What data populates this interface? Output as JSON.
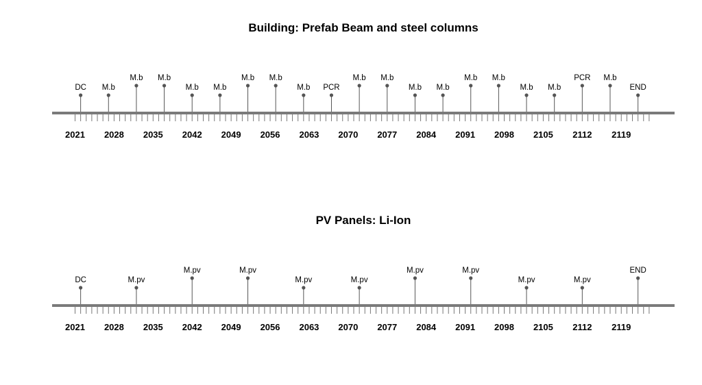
{
  "charts": [
    {
      "title": "Building: Prefab Beam and steel columns",
      "type": "timeline",
      "year_ticks": [
        "2021",
        "2028",
        "2035",
        "2042",
        "2049",
        "2056",
        "2063",
        "2070",
        "2077",
        "2084",
        "2091",
        "2098",
        "2105",
        "2112",
        "2119"
      ],
      "events": [
        {
          "year": 2022,
          "label": "DC"
        },
        {
          "year": 2027,
          "label": "M.b"
        },
        {
          "year": 2032,
          "label": "M.b"
        },
        {
          "year": 2037,
          "label": "M.b"
        },
        {
          "year": 2042,
          "label": "M.b"
        },
        {
          "year": 2047,
          "label": "M.b"
        },
        {
          "year": 2052,
          "label": "M.b"
        },
        {
          "year": 2057,
          "label": "M.b"
        },
        {
          "year": 2062,
          "label": "M.b"
        },
        {
          "year": 2067,
          "label": "PCR"
        },
        {
          "year": 2072,
          "label": "M.b"
        },
        {
          "year": 2077,
          "label": "M.b"
        },
        {
          "year": 2082,
          "label": "M.b"
        },
        {
          "year": 2087,
          "label": "M.b"
        },
        {
          "year": 2092,
          "label": "M.b"
        },
        {
          "year": 2097,
          "label": "M.b"
        },
        {
          "year": 2102,
          "label": "M.b"
        },
        {
          "year": 2107,
          "label": "M.b"
        },
        {
          "year": 2112,
          "label": "PCR"
        },
        {
          "year": 2117,
          "label": "M.b"
        },
        {
          "year": 2122,
          "label": "END"
        }
      ]
    },
    {
      "title": "PV Panels: Li-Ion",
      "type": "timeline",
      "year_ticks": [
        "2021",
        "2028",
        "2035",
        "2042",
        "2049",
        "2056",
        "2063",
        "2070",
        "2077",
        "2084",
        "2091",
        "2098",
        "2105",
        "2112",
        "2119"
      ],
      "events": [
        {
          "year": 2022,
          "label": "DC"
        },
        {
          "year": 2032,
          "label": "M.pv"
        },
        {
          "year": 2042,
          "label": "M.pv"
        },
        {
          "year": 2052,
          "label": "M.pv"
        },
        {
          "year": 2062,
          "label": "M.pv"
        },
        {
          "year": 2072,
          "label": "M.pv"
        },
        {
          "year": 2082,
          "label": "M.pv"
        },
        {
          "year": 2092,
          "label": "M.pv"
        },
        {
          "year": 2102,
          "label": "M.pv"
        },
        {
          "year": 2112,
          "label": "M.pv"
        },
        {
          "year": 2122,
          "label": "END"
        }
      ]
    }
  ],
  "chart_data": [
    {
      "type": "timeline",
      "title": "Building: Prefab Beam and steel columns",
      "x": [
        2022,
        2027,
        2032,
        2037,
        2042,
        2047,
        2052,
        2057,
        2062,
        2067,
        2072,
        2077,
        2082,
        2087,
        2092,
        2097,
        2102,
        2107,
        2112,
        2117,
        2122
      ],
      "labels": [
        "DC",
        "M.b",
        "M.b",
        "M.b",
        "M.b",
        "M.b",
        "M.b",
        "M.b",
        "M.b",
        "PCR",
        "M.b",
        "M.b",
        "M.b",
        "M.b",
        "M.b",
        "M.b",
        "M.b",
        "M.b",
        "PCR",
        "M.b",
        "END"
      ],
      "xlim": [
        2021,
        2123
      ]
    },
    {
      "type": "timeline",
      "title": "PV Panels: Li-Ion",
      "x": [
        2022,
        2032,
        2042,
        2052,
        2062,
        2072,
        2082,
        2092,
        2102,
        2112,
        2122
      ],
      "labels": [
        "DC",
        "M.pv",
        "M.pv",
        "M.pv",
        "M.pv",
        "M.pv",
        "M.pv",
        "M.pv",
        "M.pv",
        "M.pv",
        "END"
      ],
      "xlim": [
        2021,
        2123
      ]
    }
  ]
}
